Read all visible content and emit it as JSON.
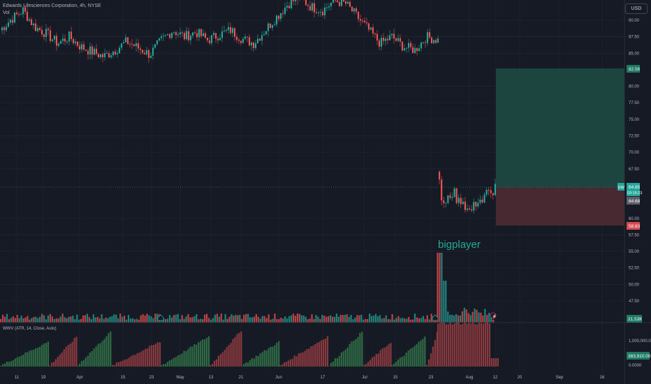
{
  "legend": {
    "symbol_title": "Edwards Lifesciences Corporation, 4h, NYSE",
    "vol_label": "Vol"
  },
  "currency_button": "USD",
  "annotation_text": "bigplayer",
  "indicator_legend": "WWV (ATR, 14, Close, Auto)",
  "price_axis": {
    "ticks": [
      "90.00",
      "87.50",
      "85.00",
      "80.00",
      "77.50",
      "75.00",
      "72.50",
      "70.00",
      "67.50",
      "60.00",
      "57.50",
      "55.00",
      "52.50",
      "50.00",
      "47.50"
    ],
    "tp_label": "82.56",
    "sl_label": "58.83",
    "symbol_tag": "EW",
    "current_price": "64.85",
    "countdown": "03:15:23",
    "entry_price": "64.68",
    "vol_label": "21.53K"
  },
  "indicator_axis": {
    "ticks": [
      "1,000,000.00",
      "0.0000"
    ],
    "current_value": "383,910.00"
  },
  "time_axis": {
    "labels": [
      "11",
      "19",
      "Apr",
      "15",
      "23",
      "May",
      "13",
      "21",
      "Jun",
      "17",
      "Jul",
      "15",
      "23",
      "Aug",
      "12",
      "20",
      "Sep",
      "16"
    ]
  },
  "colors": {
    "background": "#161a25",
    "up": "#26a69a",
    "down": "#ef5350",
    "profit_zone": "#1e4d45",
    "loss_zone": "#4e2a33",
    "grid": "#232733"
  },
  "chart_data": {
    "type": "candlestick",
    "price_range": [
      45,
      95
    ],
    "series": [
      {
        "name": "price_history_before_gap",
        "values": [
          88.5,
          90.2,
          91.5,
          89.0,
          88.0,
          86.5,
          87.5,
          86.0,
          85.2,
          84.5,
          85.5,
          86.8,
          85.8,
          84.8,
          87.0,
          88.5,
          87.5,
          88.2,
          87.0,
          87.8,
          88.5,
          87.2,
          86.5,
          88.5,
          90.5,
          92.5,
          93.5,
          92.0,
          91.5,
          93.0,
          92.5,
          90.5,
          88.5,
          86.5,
          87.5,
          86.0,
          85.5,
          87.5,
          87.0
        ]
      },
      {
        "name": "price_after_gap",
        "values": [
          67.5,
          63.0,
          62.0,
          63.5,
          64.0,
          62.5,
          63.0,
          61.5,
          61.0,
          62.0,
          63.0,
          62.5,
          64.0,
          63.5,
          64.85
        ]
      }
    ],
    "position": {
      "take_profit": 82.56,
      "entry": 64.68,
      "stop_loss": 58.83
    }
  }
}
